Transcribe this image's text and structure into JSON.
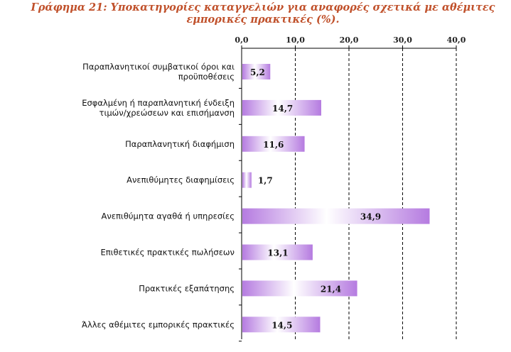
{
  "title": "Γράφημα 21: Υποκατηγορίες καταγγελιών για αναφορές σχετικά με αθέμιτες εμπορικές πρακτικές (%).",
  "colors": {
    "title": "#c0502a",
    "bar_start": "#b57be0",
    "bar_mid": "#ffffff",
    "bar_end": "#b57be0",
    "axis": "#000000",
    "grid": "#000000"
  },
  "chart_data": {
    "type": "bar",
    "orientation": "horizontal",
    "title": "Γράφημα 21: Υποκατηγορίες καταγγελιών για αναφορές σχετικά με αθέμιτες εμπορικές πρακτικές (%).",
    "xlabel": "",
    "ylabel": "",
    "xlim": [
      0,
      40
    ],
    "ticks": [
      0,
      10,
      20,
      30,
      40
    ],
    "tick_labels": [
      "0,0",
      "10,0",
      "20,0",
      "30,0",
      "40,0"
    ],
    "axis_position": "top",
    "grid": "dashed vertical",
    "categories": [
      [
        "Παραπλανητικοί συμβατικοί όροι και",
        "προϋποθέσεις"
      ],
      [
        "Εσφαλμένη ή παραπλανητική ένδειξη",
        "τιμών/χρεώσεων και επισήμανση"
      ],
      [
        "Παραπλανητική διαφήμιση"
      ],
      [
        "Ανεπιθύμητες διαφημίσεις"
      ],
      [
        "Ανεπιθύμητα αγαθά ή υπηρεσίες"
      ],
      [
        "Επιθετικές πρακτικές πωλήσεων"
      ],
      [
        "Πρακτικές εξαπάτησης"
      ],
      [
        "Άλλες αθέμιτες εμπορικές πρακτικές"
      ]
    ],
    "values": [
      5.2,
      14.7,
      11.6,
      1.7,
      34.9,
      13.1,
      21.4,
      14.5
    ],
    "value_labels": [
      "5,2",
      "14,7",
      "11,6",
      "1,7",
      "34,9",
      "13,1",
      "21,4",
      "14,5"
    ]
  }
}
